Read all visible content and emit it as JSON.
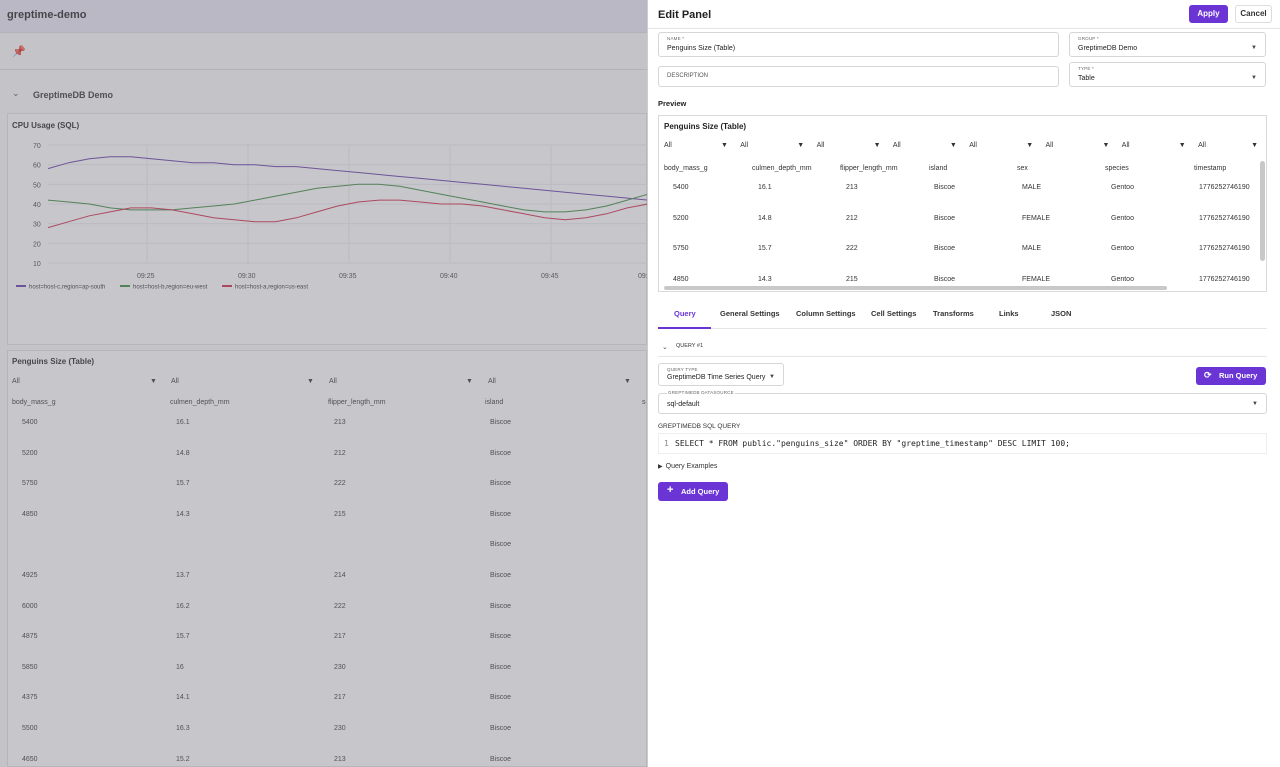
{
  "app": {
    "title": "greptime-demo"
  },
  "group": {
    "name": "GreptimeDB Demo"
  },
  "cpu_panel": {
    "title": "CPU Usage (SQL)",
    "legend": [
      "host=host-c,region=ap-south",
      "host=host-b,region=eu-west",
      "host=host-a,region=us-east"
    ],
    "colors": {
      "host-c": "#6a3aa8",
      "host-b": "#3a8a3a",
      "host-a": "#d12a45"
    }
  },
  "chart_data": {
    "type": "line",
    "title": "CPU Usage (SQL)",
    "xlabel": "",
    "ylabel": "",
    "x_ticks": [
      "09:25",
      "09:30",
      "09:35",
      "09:40",
      "09:45",
      "09:5"
    ],
    "y_ticks": [
      70,
      60,
      50,
      40,
      30,
      20,
      10
    ],
    "ylim": [
      10,
      70
    ],
    "grid": true,
    "legend_position": "bottom-left",
    "series": [
      {
        "name": "host=host-c,region=ap-south",
        "x": [
          0,
          1,
          2,
          3,
          4,
          5,
          6,
          7,
          8,
          9,
          10,
          11,
          12,
          13,
          14,
          15,
          16,
          17,
          18,
          19,
          20,
          21,
          22,
          23,
          24,
          25,
          26,
          27,
          28,
          29
        ],
        "values": [
          58,
          61,
          63,
          64,
          64,
          63,
          62,
          61,
          61,
          60,
          60,
          59,
          59,
          58,
          57,
          56,
          55,
          54,
          53,
          52,
          51,
          50,
          49,
          48,
          47,
          46,
          45,
          44,
          43,
          42
        ]
      },
      {
        "name": "host=host-b,region=eu-west",
        "x": [
          0,
          1,
          2,
          3,
          4,
          5,
          6,
          7,
          8,
          9,
          10,
          11,
          12,
          13,
          14,
          15,
          16,
          17,
          18,
          19,
          20,
          21,
          22,
          23,
          24,
          25,
          26,
          27,
          28,
          29
        ],
        "values": [
          42,
          41,
          40,
          38,
          37,
          37,
          37,
          38,
          39,
          40,
          42,
          44,
          46,
          48,
          49,
          50,
          50,
          49,
          47,
          45,
          43,
          41,
          39,
          37,
          36,
          36,
          37,
          39,
          42,
          45
        ]
      },
      {
        "name": "host=host-a,region=us-east",
        "x": [
          0,
          1,
          2,
          3,
          4,
          5,
          6,
          7,
          8,
          9,
          10,
          11,
          12,
          13,
          14,
          15,
          16,
          17,
          18,
          19,
          20,
          21,
          22,
          23,
          24,
          25,
          26,
          27,
          28,
          29
        ],
        "values": [
          28,
          31,
          34,
          36,
          38,
          38,
          37,
          35,
          33,
          32,
          31,
          31,
          33,
          36,
          39,
          41,
          42,
          42,
          41,
          40,
          40,
          39,
          37,
          35,
          33,
          32,
          33,
          35,
          38,
          40
        ]
      }
    ]
  },
  "penguins_bg": {
    "title": "Penguins Size (Table)",
    "filters": [
      "All",
      "All",
      "All",
      "All"
    ],
    "headers": [
      "body_mass_g",
      "culmen_depth_mm",
      "flipper_length_mm",
      "island",
      "se"
    ],
    "rows": [
      [
        "5400",
        "16.1",
        "213",
        "Biscoe"
      ],
      [
        "5200",
        "14.8",
        "212",
        "Biscoe"
      ],
      [
        "5750",
        "15.7",
        "222",
        "Biscoe"
      ],
      [
        "4850",
        "14.3",
        "215",
        "Biscoe"
      ],
      [
        "",
        "",
        "",
        "Biscoe"
      ],
      [
        "4925",
        "13.7",
        "214",
        "Biscoe"
      ],
      [
        "6000",
        "16.2",
        "222",
        "Biscoe"
      ],
      [
        "4875",
        "15.7",
        "217",
        "Biscoe"
      ],
      [
        "5850",
        "16",
        "230",
        "Biscoe"
      ],
      [
        "4375",
        "14.1",
        "217",
        "Biscoe"
      ],
      [
        "5500",
        "16.3",
        "230",
        "Biscoe"
      ],
      [
        "4650",
        "15.2",
        "213",
        "Biscoe"
      ]
    ]
  },
  "edit_panel": {
    "title": "Edit Panel",
    "apply_label": "Apply",
    "cancel_label": "Cancel",
    "name_label": "NAME *",
    "name_value": "Penguins Size (Table)",
    "group_label": "GROUP *",
    "group_value": "GreptimeDB Demo",
    "description_placeholder": "DESCRIPTION",
    "type_label": "TYPE *",
    "type_value": "Table",
    "preview_label": "Preview",
    "preview": {
      "title": "Penguins Size (Table)",
      "filters": [
        "All",
        "All",
        "All",
        "All",
        "All",
        "All",
        "All",
        "All"
      ],
      "headers": [
        "body_mass_g",
        "culmen_depth_mm",
        "flipper_length_mm",
        "island",
        "sex",
        "species",
        "timestamp"
      ],
      "rows": [
        [
          "5400",
          "16.1",
          "213",
          "Biscoe",
          "MALE",
          "Gentoo",
          "1776252746190"
        ],
        [
          "5200",
          "14.8",
          "212",
          "Biscoe",
          "FEMALE",
          "Gentoo",
          "1776252746190"
        ],
        [
          "5750",
          "15.7",
          "222",
          "Biscoe",
          "MALE",
          "Gentoo",
          "1776252746190"
        ],
        [
          "4850",
          "14.3",
          "215",
          "Biscoe",
          "FEMALE",
          "Gentoo",
          "1776252746190"
        ]
      ]
    },
    "tabs": [
      "Query",
      "General Settings",
      "Column Settings",
      "Cell Settings",
      "Transforms",
      "Links",
      "JSON"
    ],
    "active_tab": "Query",
    "query": {
      "section_label": "QUERY #1",
      "query_type_label": "QUERY TYPE",
      "query_type_value": "GreptimeDB Time Series Query",
      "run_label": "Run Query",
      "datasource_label": "GREPTIMEDB DATASOURCE",
      "datasource_value": "sql-default",
      "sql_label": "GREPTIMEDB SQL QUERY",
      "line_number": "1",
      "sql": "SELECT * FROM public.\"penguins_size\" ORDER BY \"greptime_timestamp\" DESC LIMIT 100;",
      "examples_label": "Query Examples",
      "add_label": "Add Query"
    }
  }
}
